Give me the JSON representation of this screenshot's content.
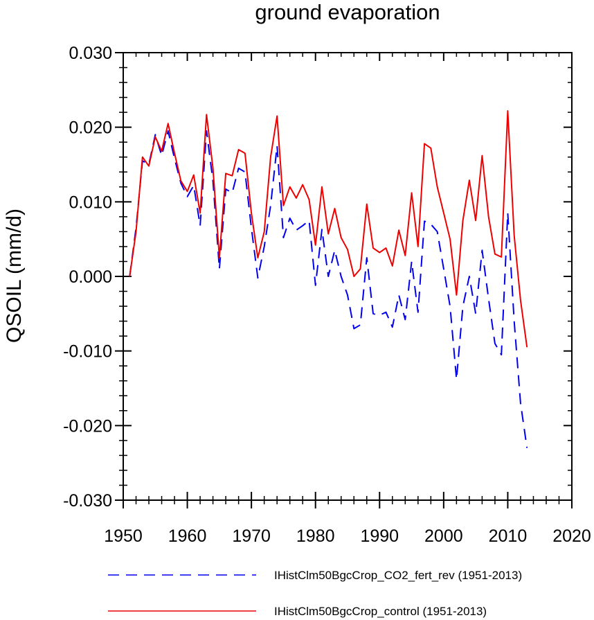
{
  "chart_data": {
    "type": "line",
    "title": "ground evaporation",
    "xlabel": "",
    "ylabel": "QSOIL  (mm/d)",
    "xlim": [
      1950,
      2020
    ],
    "ylim": [
      -0.03,
      0.03
    ],
    "x_ticks": [
      1950,
      1960,
      1970,
      1980,
      1990,
      2000,
      2010,
      2020
    ],
    "x_tick_labels": [
      "1950",
      "1960",
      "1970",
      "1980",
      "1990",
      "2000",
      "2010",
      "2020"
    ],
    "y_ticks": [
      -0.03,
      -0.02,
      -0.01,
      0.0,
      0.01,
      0.02,
      0.03
    ],
    "y_tick_labels": [
      "-0.030",
      "-0.020",
      "-0.010",
      "0.000",
      "0.010",
      "0.020",
      "0.030"
    ],
    "grid": false,
    "legend_position": "bottom",
    "x": [
      1951,
      1952,
      1953,
      1954,
      1955,
      1956,
      1957,
      1958,
      1959,
      1960,
      1961,
      1962,
      1963,
      1964,
      1965,
      1966,
      1967,
      1968,
      1969,
      1970,
      1971,
      1972,
      1973,
      1974,
      1975,
      1976,
      1977,
      1978,
      1979,
      1980,
      1981,
      1982,
      1983,
      1984,
      1985,
      1986,
      1987,
      1988,
      1989,
      1990,
      1991,
      1992,
      1993,
      1994,
      1995,
      1996,
      1997,
      1998,
      1999,
      2000,
      2001,
      2002,
      2003,
      2004,
      2005,
      2006,
      2007,
      2008,
      2009,
      2010,
      2011,
      2012,
      2013
    ],
    "series": [
      {
        "name": "IHistClm50BgcCrop_CO2_fert_rev (1951-2013)",
        "color": "#0000ee",
        "dash": "dashed",
        "values": [
          0.0,
          0.0065,
          0.0155,
          0.015,
          0.019,
          0.0162,
          0.0195,
          0.0158,
          0.0125,
          0.0107,
          0.0122,
          0.0068,
          0.0195,
          0.0128,
          0.001,
          0.0117,
          0.0112,
          0.0145,
          0.014,
          0.0065,
          -0.0002,
          0.004,
          0.0095,
          0.0175,
          0.0052,
          0.0078,
          0.0062,
          0.0068,
          0.0075,
          -0.0012,
          0.0063,
          0.0,
          0.0035,
          0.0,
          -0.0025,
          -0.007,
          -0.0065,
          0.0025,
          -0.005,
          -0.0052,
          -0.0048,
          -0.0068,
          -0.0025,
          -0.0058,
          0.002,
          -0.0048,
          0.0074,
          0.007,
          0.006,
          0.001,
          -0.004,
          -0.0138,
          -0.004,
          0.0,
          -0.005,
          0.0035,
          -0.003,
          -0.009,
          -0.0105,
          0.0085,
          -0.006,
          -0.017,
          -0.023
        ]
      },
      {
        "name": "IHistClm50BgcCrop_control (1951-2013)",
        "color": "#ee0000",
        "dash": "solid",
        "values": [
          0.0,
          0.006,
          0.016,
          0.0148,
          0.0187,
          0.0168,
          0.0205,
          0.0165,
          0.0128,
          0.0114,
          0.0136,
          0.0085,
          0.0217,
          0.0145,
          0.0025,
          0.0138,
          0.0135,
          0.017,
          0.0165,
          0.0085,
          0.0025,
          0.006,
          0.016,
          0.0215,
          0.0095,
          0.012,
          0.0105,
          0.0123,
          0.0103,
          0.0042,
          0.012,
          0.0057,
          0.0091,
          0.0052,
          0.0036,
          0.0,
          0.001,
          0.0097,
          0.0038,
          0.0032,
          0.0038,
          0.0014,
          0.0062,
          0.0028,
          0.0112,
          0.004,
          0.0178,
          0.0172,
          0.012,
          0.0085,
          0.005,
          -0.0025,
          0.0075,
          0.0129,
          0.0075,
          0.0162,
          0.008,
          0.003,
          0.0026,
          0.0222,
          0.0055,
          -0.0032,
          -0.0095
        ]
      }
    ]
  }
}
